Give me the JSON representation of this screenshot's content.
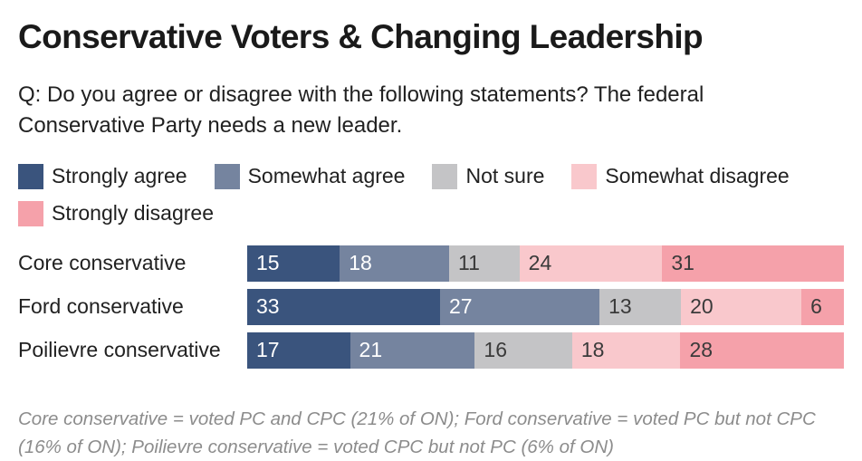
{
  "header": {
    "title": "Conservative Voters & Changing Leadership",
    "subtitle": "Q: Do you agree or disagree with the following statements? The federal Conservative Party needs a new leader."
  },
  "chart_data": {
    "type": "bar",
    "orientation": "horizontal",
    "stacked": true,
    "units": "percent",
    "xlim": [
      0,
      100
    ],
    "grid": false,
    "legend_position": "top",
    "value_labels": "inside-left",
    "categories": [
      "Core conservative",
      "Ford conservative",
      "Poilievre conservative"
    ],
    "series": [
      {
        "name": "Strongly agree",
        "color": "#3a547d",
        "values": [
          15,
          33,
          17
        ]
      },
      {
        "name": "Somewhat agree",
        "color": "#75849f",
        "values": [
          18,
          27,
          21
        ]
      },
      {
        "name": "Not sure",
        "color": "#c4c4c6",
        "values": [
          11,
          13,
          16
        ]
      },
      {
        "name": "Somewhat disagree",
        "color": "#f9c8cc",
        "values": [
          24,
          20,
          18
        ]
      },
      {
        "name": "Strongly disagree",
        "color": "#f5a1aa",
        "values": [
          31,
          6,
          28
        ]
      }
    ]
  },
  "footnote": "Core conservative = voted PC and CPC (21% of ON); Ford conservative = voted PC but not CPC (16% of ON); Poilievre conservative = voted CPC but not PC (6% of ON)"
}
